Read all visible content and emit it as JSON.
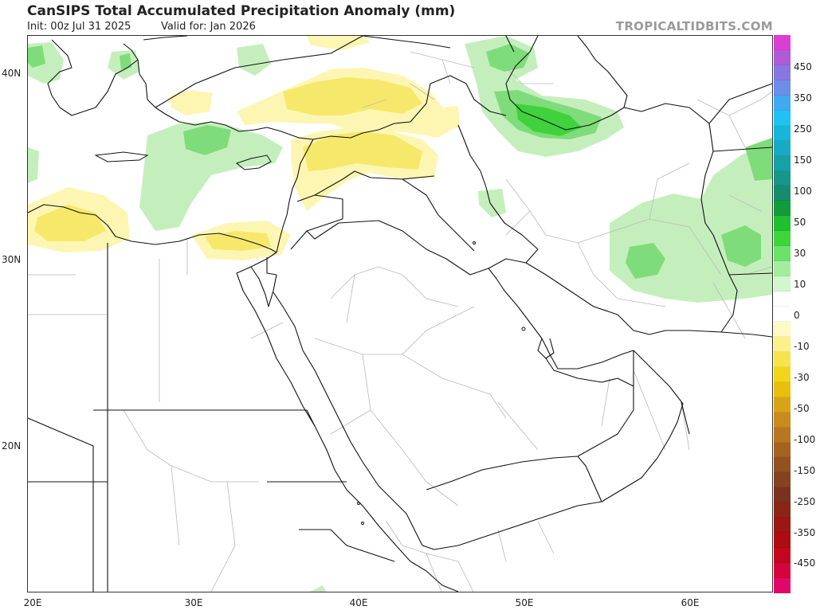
{
  "header": {
    "title": "CanSIPS Total Accumulated Precipitation Anomaly (mm)",
    "init": "Init: 00z Jul 31 2025",
    "valid": "Valid for: Jan 2026",
    "credit": "TROPICALTIDBITS.COM"
  },
  "axes": {
    "lat_labels": [
      "40N",
      "30N",
      "20N"
    ],
    "lon_labels": [
      "20E",
      "30E",
      "40E",
      "50E",
      "60E"
    ]
  },
  "colorbar": {
    "labels": [
      "450",
      "350",
      "250",
      "150",
      "100",
      "50",
      "30",
      "10",
      "0",
      "-10",
      "-30",
      "-50",
      "-100",
      "-150",
      "-250",
      "-350",
      "-450"
    ],
    "colors": [
      "#d93fd0",
      "#b05ad8",
      "#8877e0",
      "#6c8ee8",
      "#3fa9f2",
      "#1fc2f2",
      "#17b6d8",
      "#19a9c0",
      "#17a0a6",
      "#17968c",
      "#168c6e",
      "#139b3b",
      "#1fbf2f",
      "#3ed43c",
      "#6ce26a",
      "#a5ed9e",
      "#d3f6cd",
      "#ffffff",
      "#ffffff",
      "#fff9c4",
      "#fbf08a",
      "#f6e44e",
      "#f2d41c",
      "#e8be10",
      "#d9a318",
      "#c98a1e",
      "#b7761f",
      "#a4631f",
      "#935120",
      "#84421f",
      "#7a321c",
      "#8c2416",
      "#9c1612",
      "#ae0c10",
      "#c3061b",
      "#d4053a",
      "#e2066a"
    ]
  }
}
